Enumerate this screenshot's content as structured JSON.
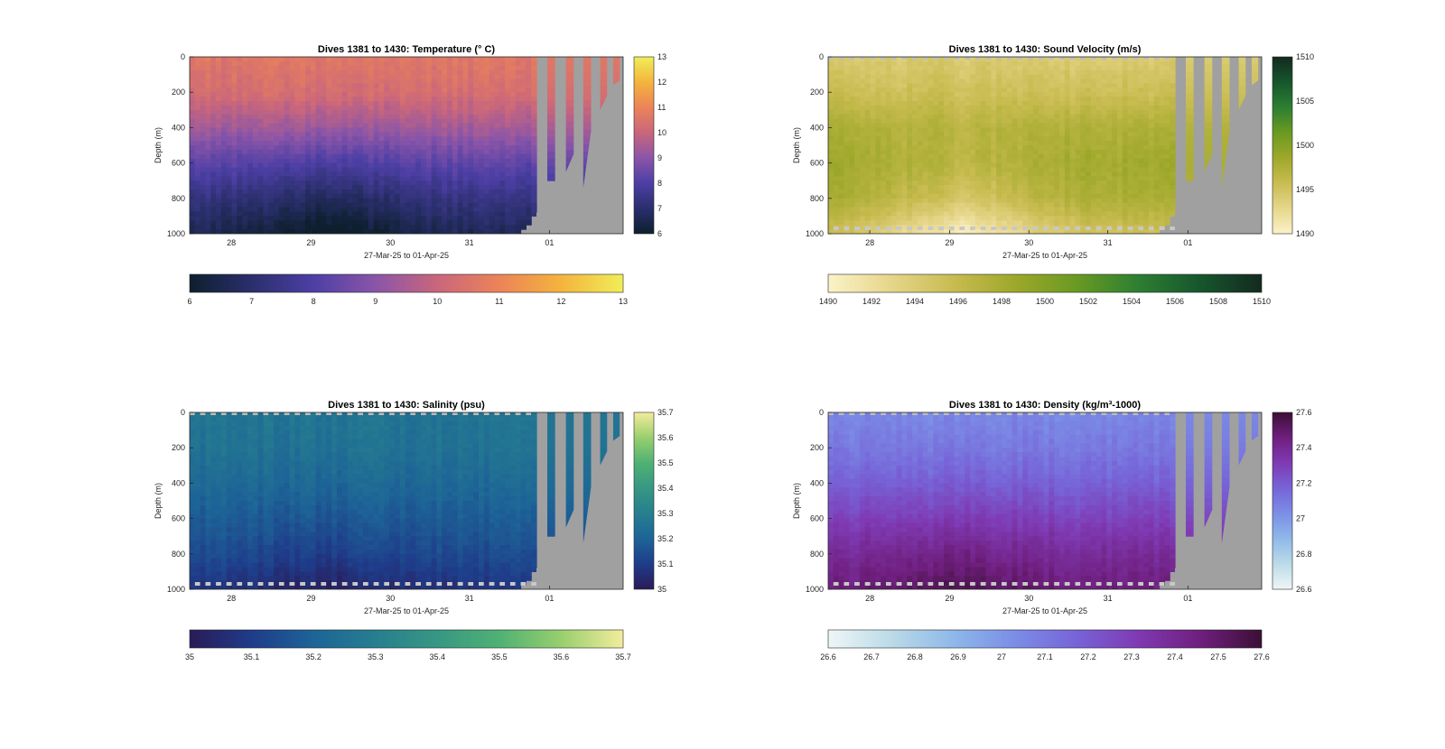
{
  "figure": {
    "background": "#ffffff"
  },
  "chart_data": [
    {
      "type": "heatmap",
      "id": "temperature",
      "title": "Dives 1381 to 1430: Temperature (° C)",
      "xlabel": "27-Mar-25 to 01-Apr-25",
      "ylabel": "Depth (m)",
      "x_ticks": [
        "28",
        "29",
        "30",
        "31",
        "01"
      ],
      "y_ticks": [
        "0",
        "200",
        "400",
        "600",
        "800",
        "1000"
      ],
      "ylim": [
        1000,
        0
      ],
      "colorbar_ticks": [
        "6",
        "7",
        "8",
        "9",
        "10",
        "11",
        "12",
        "13"
      ],
      "hcolorbar_ticks": [
        "6",
        "7",
        "8",
        "9",
        "10",
        "11",
        "12",
        "13"
      ],
      "clim": [
        6,
        13
      ],
      "colors": [
        "#0e1f2e",
        "#2a2f6c",
        "#4d3fa5",
        "#8a55a8",
        "#c9667c",
        "#ec8358",
        "#f4b43e",
        "#f0ee58"
      ],
      "profile_value": [
        10.6,
        10.3,
        9.4,
        8.3,
        7.4,
        6.7
      ],
      "top_speckle": false,
      "bottom_speckle": false,
      "nodata_color": "#a0a0a0"
    },
    {
      "type": "heatmap",
      "id": "sound-velocity",
      "title": "Dives 1381 to 1430: Sound Velocity (m/s)",
      "xlabel": "27-Mar-25 to 01-Apr-25",
      "ylabel": "Depth (m)",
      "x_ticks": [
        "28",
        "29",
        "30",
        "31",
        "01"
      ],
      "y_ticks": [
        "0",
        "200",
        "400",
        "600",
        "800",
        "1000"
      ],
      "ylim": [
        1000,
        0
      ],
      "colorbar_ticks": [
        "1490",
        "1495",
        "1500",
        "1505",
        "1510"
      ],
      "hcolorbar_ticks": [
        "1490",
        "1492",
        "1494",
        "1496",
        "1498",
        "1500",
        "1502",
        "1504",
        "1506",
        "1508",
        "1510"
      ],
      "clim": [
        1490,
        1510
      ],
      "colors": [
        "#fbf3c8",
        "#e6d68b",
        "#c9bc51",
        "#9ea82a",
        "#6a9a22",
        "#2d7f32",
        "#17562d",
        "#132a1f"
      ],
      "profile_value": [
        1494.2,
        1495.5,
        1497.3,
        1497.8,
        1496.9,
        1494.0
      ],
      "top_speckle": true,
      "bottom_speckle": true,
      "nodata_color": "#a0a0a0"
    },
    {
      "type": "heatmap",
      "id": "salinity",
      "title": "Dives 1381 to 1430: Salinity (psu)",
      "xlabel": "27-Mar-25 to 01-Apr-25",
      "ylabel": "Depth (m)",
      "x_ticks": [
        "28",
        "29",
        "30",
        "31",
        "01"
      ],
      "y_ticks": [
        "0",
        "200",
        "400",
        "600",
        "800",
        "1000"
      ],
      "ylim": [
        1000,
        0
      ],
      "colorbar_ticks": [
        "35",
        "35.1",
        "35.2",
        "35.3",
        "35.4",
        "35.5",
        "35.6",
        "35.7"
      ],
      "hcolorbar_ticks": [
        "35",
        "35.1",
        "35.2",
        "35.3",
        "35.4",
        "35.5",
        "35.6",
        "35.7"
      ],
      "clim": [
        35.0,
        35.7
      ],
      "colors": [
        "#2a1b57",
        "#1f3c8a",
        "#1d6497",
        "#267f8f",
        "#379783",
        "#4fb174",
        "#98cf6e",
        "#f4ec9c"
      ],
      "profile_value": [
        35.26,
        35.25,
        35.22,
        35.18,
        35.14,
        35.08
      ],
      "top_speckle": true,
      "bottom_speckle": true,
      "nodata_color": "#a0a0a0"
    },
    {
      "type": "heatmap",
      "id": "density",
      "title": "Dives 1381 to 1430: Density (kg/m³-1000)",
      "xlabel": "27-Mar-25 to 01-Apr-25",
      "ylabel": "Depth (m)",
      "x_ticks": [
        "28",
        "29",
        "30",
        "31",
        "01"
      ],
      "y_ticks": [
        "0",
        "200",
        "400",
        "600",
        "800",
        "1000"
      ],
      "ylim": [
        1000,
        0
      ],
      "colorbar_ticks": [
        "26.6",
        "26.8",
        "27",
        "27.2",
        "27.4",
        "27.6"
      ],
      "hcolorbar_ticks": [
        "26.6",
        "26.7",
        "26.8",
        "26.9",
        "27",
        "27.1",
        "27.2",
        "27.3",
        "27.4",
        "27.5",
        "27.6"
      ],
      "clim": [
        26.6,
        27.6
      ],
      "colors": [
        "#eef6f7",
        "#bcdbe8",
        "#8fb9e9",
        "#7b8ee6",
        "#7764d8",
        "#7f3ab3",
        "#6f1f7e",
        "#3b0f35"
      ],
      "profile_value": [
        27.05,
        27.1,
        27.18,
        27.28,
        27.38,
        27.45
      ],
      "top_speckle": true,
      "bottom_speckle": true,
      "nodata_color": "#a0a0a0"
    }
  ]
}
